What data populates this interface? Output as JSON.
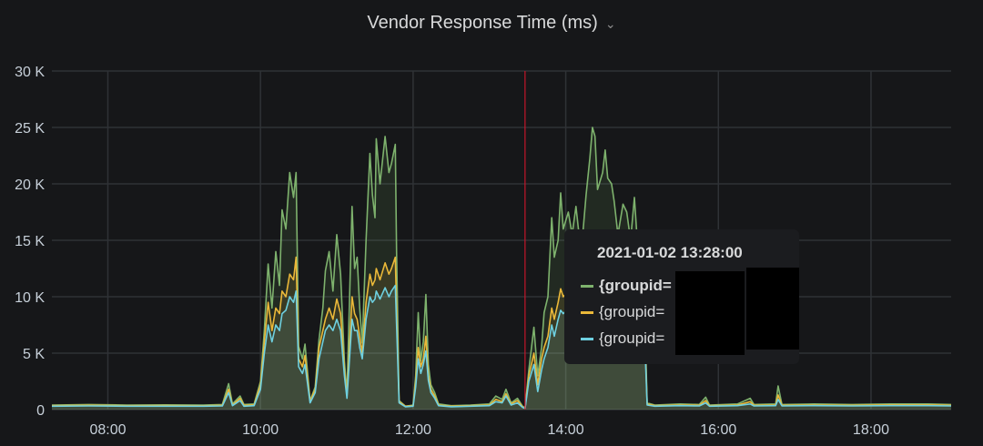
{
  "panel": {
    "title": "Vendor Response Time (ms)",
    "menu_icon": "chevron-down-icon"
  },
  "colors": {
    "background": "#161719",
    "grid": "#2f3236",
    "green": "#7eb26d",
    "orange": "#eab839",
    "blue": "#6ed0e0",
    "cursor": "#c4162a"
  },
  "tooltip": {
    "timestamp": "2021-01-02 13:28:00",
    "rows": [
      {
        "label": "{groupid=",
        "color": "#7eb26d",
        "bold": true
      },
      {
        "label": "{groupid=",
        "color": "#eab839",
        "bold": false
      },
      {
        "label": "{groupid=",
        "color": "#6ed0e0",
        "bold": false
      }
    ]
  },
  "chart_data": {
    "type": "area",
    "title": "Vendor Response Time (ms)",
    "xlabel": "",
    "ylabel": "",
    "xlim": [
      "07:16",
      "19:03"
    ],
    "ylim": [
      0,
      30000
    ],
    "y_ticks": [
      {
        "v": 0,
        "label": "0"
      },
      {
        "v": 5000,
        "label": "5 K"
      },
      {
        "v": 10000,
        "label": "10 K"
      },
      {
        "v": 15000,
        "label": "15 K"
      },
      {
        "v": 20000,
        "label": "20 K"
      },
      {
        "v": 25000,
        "label": "25 K"
      },
      {
        "v": 30000,
        "label": "30 K"
      }
    ],
    "x_ticks": [
      "08:00",
      "10:00",
      "12:00",
      "14:00",
      "16:00",
      "18:00"
    ],
    "grid": true,
    "cursor_time": "13:28",
    "x": [
      "07:16",
      "07:45",
      "08:15",
      "08:45",
      "09:15",
      "09:30",
      "09:35",
      "09:38",
      "09:44",
      "09:47",
      "09:55",
      "10:00",
      "10:03",
      "10:06",
      "10:09",
      "10:12",
      "10:15",
      "10:17",
      "10:20",
      "10:23",
      "10:26",
      "10:28",
      "10:30",
      "10:33",
      "10:35",
      "10:39",
      "10:43",
      "10:46",
      "10:49",
      "10:51",
      "10:54",
      "10:57",
      "11:00",
      "11:03",
      "11:06",
      "11:08",
      "11:12",
      "11:14",
      "11:16",
      "11:18",
      "11:20",
      "11:23",
      "11:26",
      "11:28",
      "11:30",
      "11:31",
      "11:34",
      "11:38",
      "11:41",
      "11:43",
      "11:46",
      "11:47",
      "11:49",
      "11:54",
      "12:00",
      "12:02",
      "12:04",
      "12:06",
      "12:08",
      "12:10",
      "12:12",
      "12:14",
      "12:17",
      "12:20",
      "12:30",
      "12:45",
      "13:00",
      "13:05",
      "13:10",
      "13:13",
      "13:17",
      "13:22",
      "13:26",
      "13:28",
      "13:31",
      "13:35",
      "13:38",
      "13:41",
      "13:43",
      "13:46",
      "13:49",
      "13:51",
      "13:54",
      "13:56",
      "13:58",
      "14:02",
      "14:05",
      "14:08",
      "14:10",
      "14:13",
      "14:16",
      "14:19",
      "14:21",
      "14:23",
      "14:25",
      "14:29",
      "14:31",
      "14:33",
      "14:36",
      "14:38",
      "14:41",
      "14:45",
      "14:48",
      "14:51",
      "14:54",
      "14:58",
      "15:02",
      "15:04",
      "15:10",
      "15:30",
      "15:45",
      "15:50",
      "15:53",
      "16:15",
      "16:25",
      "16:28",
      "16:45",
      "16:47",
      "16:50",
      "17:15",
      "17:45",
      "18:15",
      "18:45",
      "19:03"
    ],
    "series": [
      {
        "color": "#7eb26d",
        "values": [
          400,
          450,
          400,
          420,
          400,
          450,
          2300,
          500,
          1200,
          450,
          500,
          2500,
          7000,
          12900,
          9000,
          14000,
          11000,
          17700,
          16000,
          21000,
          18800,
          21000,
          5600,
          4500,
          5800,
          800,
          2000,
          6200,
          9000,
          12300,
          14000,
          10500,
          15500,
          12000,
          4300,
          1400,
          18000,
          12500,
          13500,
          9000,
          5900,
          15000,
          22700,
          19000,
          17000,
          24000,
          20000,
          24200,
          21000,
          21800,
          23500,
          14000,
          800,
          300,
          400,
          3000,
          8600,
          4300,
          6000,
          10200,
          4000,
          2200,
          1500,
          500,
          350,
          400,
          500,
          1200,
          900,
          1800,
          600,
          1000,
          300,
          150,
          3500,
          7300,
          3000,
          5500,
          8600,
          10000,
          17000,
          13500,
          15000,
          19200,
          16000,
          17500,
          15500,
          18000,
          16000,
          15000,
          19000,
          22300,
          25000,
          24200,
          19500,
          21000,
          23000,
          20500,
          20000,
          18500,
          15500,
          18200,
          17500,
          15000,
          18800,
          12000,
          9000,
          600,
          400,
          500,
          450,
          1100,
          400,
          500,
          1000,
          450,
          500,
          2100,
          450,
          500,
          450,
          500,
          500,
          450
        ]
      },
      {
        "color": "#eab839",
        "values": [
          350,
          380,
          350,
          360,
          340,
          380,
          1800,
          400,
          1000,
          380,
          420,
          2200,
          6000,
          9500,
          7000,
          9000,
          8500,
          10500,
          10000,
          12000,
          11500,
          13500,
          4500,
          3800,
          4800,
          700,
          1800,
          5500,
          7000,
          8000,
          9000,
          8000,
          9800,
          8500,
          3500,
          1200,
          10000,
          8500,
          8000,
          6500,
          5000,
          9500,
          12000,
          11000,
          11500,
          12500,
          11500,
          13000,
          12000,
          12500,
          13500,
          9000,
          700,
          300,
          350,
          2500,
          5500,
          3800,
          4500,
          6500,
          3000,
          1800,
          1200,
          400,
          300,
          350,
          400,
          900,
          700,
          1400,
          500,
          800,
          250,
          120,
          3000,
          5000,
          2200,
          4500,
          5500,
          6500,
          9000,
          8000,
          9500,
          10700,
          10000,
          10500,
          10000,
          11000,
          10500,
          10000,
          11500,
          12000,
          13000,
          12500,
          11500,
          12000,
          12500,
          11800,
          11500,
          11000,
          10000,
          11000,
          10800,
          10000,
          11000,
          9000,
          7500,
          500,
          350,
          400,
          380,
          800,
          350,
          400,
          700,
          380,
          400,
          1300,
          380,
          400,
          380,
          420,
          420,
          380
        ]
      },
      {
        "color": "#6ed0e0",
        "values": [
          300,
          320,
          300,
          300,
          300,
          320,
          1500,
          350,
          800,
          300,
          350,
          1800,
          5000,
          7500,
          6000,
          7500,
          7000,
          8500,
          8800,
          10000,
          9500,
          10500,
          3800,
          3200,
          4000,
          600,
          1500,
          4500,
          6000,
          7000,
          7500,
          7000,
          8000,
          7000,
          3000,
          1000,
          8000,
          7000,
          7000,
          5500,
          4500,
          8000,
          10000,
          9500,
          9800,
          10500,
          9800,
          10800,
          10000,
          10500,
          11000,
          7500,
          600,
          250,
          300,
          2000,
          4500,
          3200,
          4000,
          5200,
          2600,
          1500,
          1000,
          350,
          250,
          300,
          350,
          700,
          600,
          1200,
          400,
          600,
          200,
          100,
          2500,
          4000,
          1600,
          3500,
          4500,
          5500,
          7500,
          6500,
          8000,
          8800,
          8500,
          9000,
          8500,
          9000,
          8800,
          8500,
          9500,
          10000,
          10500,
          10200,
          9500,
          10000,
          10200,
          9800,
          9500,
          9000,
          8500,
          9000,
          9000,
          8500,
          9000,
          7500,
          6500,
          400,
          300,
          350,
          320,
          600,
          300,
          350,
          500,
          320,
          350,
          900,
          320,
          350,
          320,
          350,
          350,
          320
        ]
      }
    ]
  }
}
